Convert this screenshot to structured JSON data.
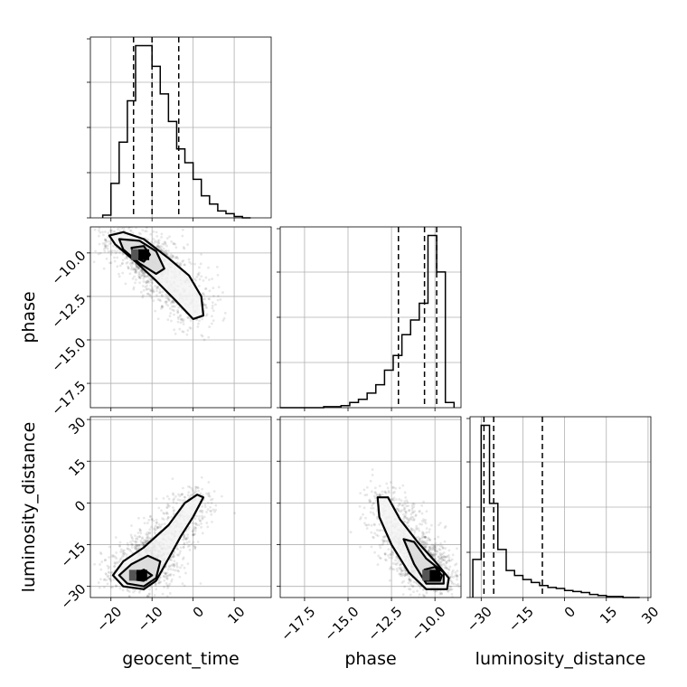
{
  "chart_data": {
    "type": "corner",
    "parameters": [
      "geocent_time",
      "phase",
      "luminosity_distance"
    ],
    "axis_labels": {
      "geocent_time": "geocent_time",
      "phase": "phase",
      "luminosity_distance": "luminosity_distance"
    },
    "ranges": {
      "geocent_time": [
        -25,
        19
      ],
      "phase": [
        -18.9,
        -8.5
      ],
      "luminosity_distance": [
        -34,
        31
      ]
    },
    "ticks": {
      "geocent_time": [
        -20,
        -10,
        0,
        10
      ],
      "phase": [
        -17.5,
        -15.0,
        -12.5,
        -10.0
      ],
      "luminosity_distance": [
        -30,
        -15,
        0,
        15,
        30
      ]
    },
    "tick_labels": {
      "geocent_time": [
        "−20",
        "−10",
        "0",
        "10"
      ],
      "phase": [
        "−17.5",
        "−15.0",
        "−12.5",
        "−10.0"
      ],
      "luminosity_distance": [
        "−30",
        "−15",
        "0",
        "15",
        "30"
      ]
    },
    "grid": true,
    "histograms": {
      "geocent_time": {
        "edges": [
          -22,
          -20,
          -18,
          -16,
          -14,
          -12,
          -10,
          -8,
          -6,
          -4,
          -2,
          0,
          2,
          4,
          6,
          8,
          10,
          12,
          14
        ],
        "counts": [
          2,
          25,
          55,
          85,
          125,
          125,
          110,
          90,
          70,
          50,
          40,
          28,
          16,
          10,
          5,
          3,
          1,
          0
        ]
      },
      "phase": {
        "edges": [
          -18.9,
          -18.4,
          -17.9,
          -17.4,
          -16.9,
          -16.4,
          -15.9,
          -15.4,
          -14.9,
          -14.4,
          -13.9,
          -13.4,
          -12.9,
          -12.4,
          -11.9,
          -11.4,
          -10.9,
          -10.4,
          -9.9,
          -9.4,
          -8.9
        ],
        "counts": [
          0,
          0,
          0,
          0,
          0,
          1,
          1,
          2,
          5,
          8,
          14,
          22,
          36,
          50,
          70,
          84,
          100,
          165,
          130,
          5
        ]
      },
      "luminosity_distance": {
        "edges": [
          -33,
          -30,
          -27,
          -24,
          -21,
          -18,
          -15,
          -12,
          -9,
          -6,
          -3,
          0,
          3,
          6,
          9,
          12,
          15,
          18,
          21,
          24,
          27
        ],
        "counts": [
          38,
          172,
          94,
          48,
          27,
          22,
          18,
          15,
          12,
          10,
          9,
          7,
          6,
          5,
          3,
          2,
          1,
          1,
          0,
          0
        ]
      }
    },
    "quantiles": {
      "geocent_time": [
        -14.5,
        -10.0,
        -3.5
      ],
      "phase": [
        -12.1,
        -10.6,
        -9.9
      ],
      "luminosity_distance": [
        -29.0,
        -25.5,
        -8.0
      ]
    },
    "pairs": [
      {
        "x": "geocent_time",
        "y": "phase",
        "peak": [
          -12.0,
          -10.1
        ],
        "contours": [
          [
            [
              -20.4,
              -9.0
            ],
            [
              -17,
              -8.8
            ],
            [
              -12,
              -9.2
            ],
            [
              -6,
              -10.3
            ],
            [
              -1,
              -11.3
            ],
            [
              2,
              -12.5
            ],
            [
              2.5,
              -13.6
            ],
            [
              0,
              -13.8
            ],
            [
              -4,
              -12.8
            ],
            [
              -9,
              -11.6
            ],
            [
              -14,
              -10.5
            ],
            [
              -19,
              -9.5
            ]
          ],
          [
            [
              -18,
              -9.2
            ],
            [
              -13,
              -9.3
            ],
            [
              -9,
              -9.9
            ],
            [
              -7,
              -10.9
            ],
            [
              -9,
              -11.2
            ],
            [
              -13,
              -10.6
            ],
            [
              -17,
              -9.8
            ]
          ],
          [
            [
              -15,
              -9.7
            ],
            [
              -12,
              -9.6
            ],
            [
              -10.5,
              -10.1
            ],
            [
              -12,
              -10.5
            ],
            [
              -14.5,
              -10.2
            ]
          ]
        ]
      },
      {
        "x": "geocent_time",
        "y": "luminosity_distance",
        "peak": [
          -12.5,
          -26.0
        ],
        "contours": [
          [
            [
              -19.5,
              -26
            ],
            [
              -17,
              -21
            ],
            [
              -12,
              -16
            ],
            [
              -6,
              -8
            ],
            [
              -2,
              0
            ],
            [
              1,
              3
            ],
            [
              2.5,
              2
            ],
            [
              0,
              -5
            ],
            [
              -3,
              -12
            ],
            [
              -6,
              -20
            ],
            [
              -9,
              -28
            ],
            [
              -12,
              -31
            ],
            [
              -17,
              -30
            ]
          ],
          [
            [
              -18,
              -26
            ],
            [
              -15,
              -22
            ],
            [
              -11,
              -19
            ],
            [
              -8,
              -21
            ],
            [
              -9,
              -27
            ],
            [
              -12,
              -30
            ],
            [
              -16,
              -29
            ]
          ],
          [
            [
              -15,
              -26
            ],
            [
              -12,
              -24
            ],
            [
              -10,
              -26
            ],
            [
              -12,
              -28
            ],
            [
              -14.5,
              -27.5
            ]
          ]
        ]
      },
      {
        "x": "phase",
        "y": "luminosity_distance",
        "peak": [
          -10.0,
          -26.0
        ],
        "contours": [
          [
            [
              -13.3,
              2
            ],
            [
              -12.7,
              2
            ],
            [
              -12,
              -6
            ],
            [
              -11,
              -14
            ],
            [
              -10,
              -21
            ],
            [
              -9.2,
              -27
            ],
            [
              -9.3,
              -31
            ],
            [
              -10.5,
              -31
            ],
            [
              -11.5,
              -25
            ],
            [
              -12.5,
              -15
            ],
            [
              -13.2,
              -5
            ]
          ],
          [
            [
              -11.8,
              -13
            ],
            [
              -11.2,
              -14
            ],
            [
              -10.5,
              -20
            ],
            [
              -9.5,
              -25
            ],
            [
              -9.5,
              -29
            ],
            [
              -10.5,
              -29
            ],
            [
              -11.2,
              -22
            ]
          ],
          [
            [
              -10.6,
              -24
            ],
            [
              -10,
              -23
            ],
            [
              -9.6,
              -26
            ],
            [
              -9.7,
              -28
            ],
            [
              -10.6,
              -28
            ]
          ]
        ]
      }
    ]
  }
}
